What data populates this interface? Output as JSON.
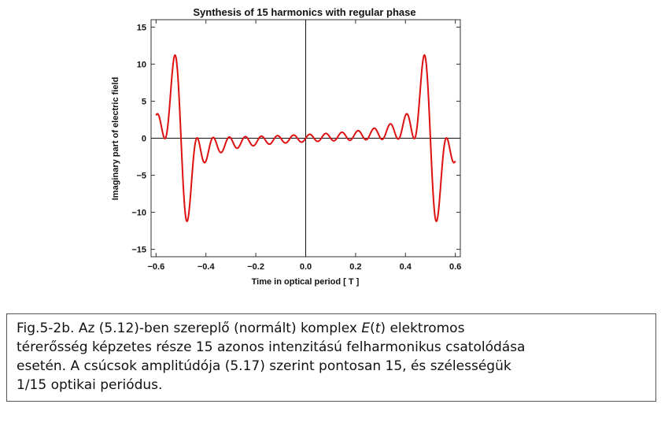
{
  "chart_data": {
    "type": "line",
    "title": "Synthesis of 15 harmonics with regular phase",
    "xlabel": "Time in optical period [ T ]",
    "ylabel": "Imaginary part of electric field",
    "xlim": [
      -0.62,
      0.62
    ],
    "ylim": [
      -16,
      16
    ],
    "x_ticks": [
      -0.6,
      -0.4,
      -0.2,
      0.0,
      0.2,
      0.4,
      0.6
    ],
    "x_tick_labels": [
      "−0.6",
      "−0.4",
      "−0.2",
      "0.0",
      "0.2",
      "0.4",
      "0.6"
    ],
    "y_ticks": [
      -15,
      -10,
      -5,
      0,
      5,
      10,
      15
    ],
    "y_tick_labels": [
      "−15",
      "−10",
      "−5",
      "0",
      "5",
      "10",
      "15"
    ],
    "series": [
      {
        "harmonics": 15,
        "formula": "sum_{n=1..15} sin(2*pi*n*t) * (-1)^(n+1)",
        "x_range": [
          -0.6,
          0.6
        ],
        "color": "#dd1111"
      }
    ],
    "grid": false,
    "axes_at_origin": true
  },
  "caption": {
    "line1_pre": "Fig.5-2b. Az (5.12)-ben szereplő (normált) komplex ",
    "line1_math": "E",
    "line1_paren_open": "(",
    "line1_math_t": "t",
    "line1_paren_close": ")",
    "line1_post": " elektromos",
    "line2": "térerősség képzetes része 15 azonos intenzitású felharmonikus csatolódása",
    "line3": "esetén. A csúcsok amplitúdója (5.17) szerint pontosan 15, és szélességük",
    "line4": "1/15 optikai periódus."
  }
}
